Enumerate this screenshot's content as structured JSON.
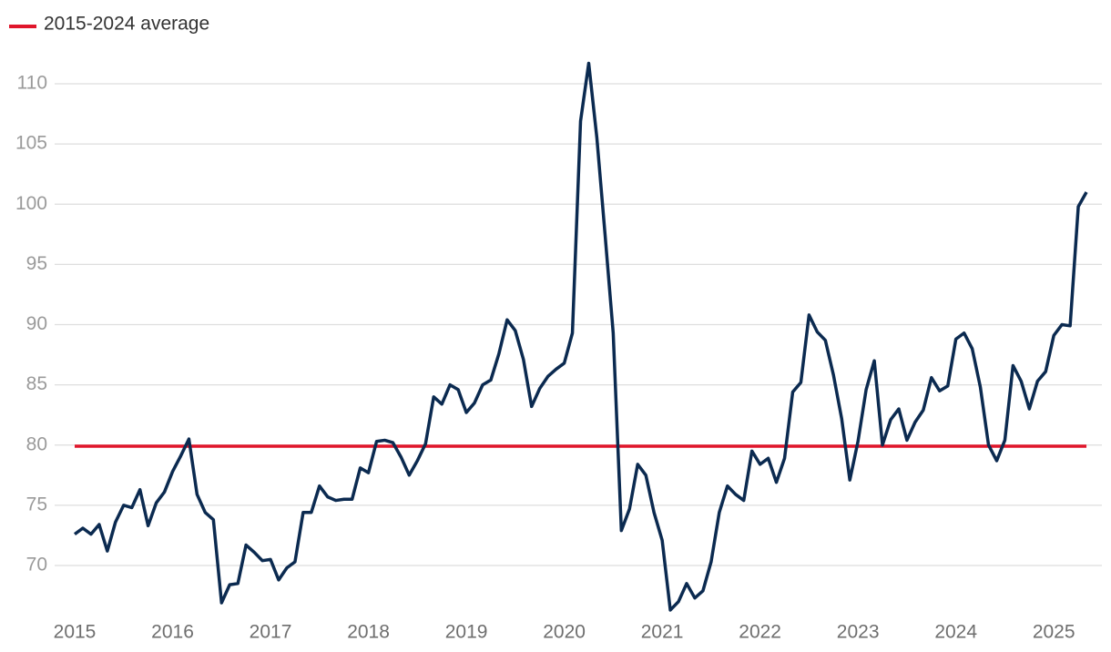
{
  "chart_data": {
    "type": "line",
    "categories": [
      "2015",
      null,
      null,
      null,
      null,
      null,
      null,
      null,
      null,
      null,
      null,
      null,
      "2016",
      null,
      null,
      null,
      null,
      null,
      null,
      null,
      null,
      null,
      null,
      null,
      "2017",
      null,
      null,
      null,
      null,
      null,
      null,
      null,
      null,
      null,
      null,
      null,
      "2018",
      null,
      null,
      null,
      null,
      null,
      null,
      null,
      null,
      null,
      null,
      null,
      "2019",
      null,
      null,
      null,
      null,
      null,
      null,
      null,
      null,
      null,
      null,
      null,
      "2020",
      null,
      null,
      null,
      null,
      null,
      null,
      null,
      null,
      null,
      null,
      null,
      "2021",
      null,
      null,
      null,
      null,
      null,
      null,
      null,
      null,
      null,
      null,
      null,
      "2022",
      null,
      null,
      null,
      null,
      null,
      null,
      null,
      null,
      null,
      null,
      null,
      "2023",
      null,
      null,
      null,
      null,
      null,
      null,
      null,
      null,
      null,
      null,
      null,
      "2024",
      null,
      null,
      null,
      null,
      null,
      null,
      null,
      null,
      null,
      null,
      null,
      "2025",
      null,
      null,
      null,
      null
    ],
    "series": [
      {
        "color": "#0b2a50",
        "values": [
          72.6,
          73.1,
          72.6,
          73.4,
          71.2,
          73.6,
          75.0,
          74.8,
          76.3,
          73.3,
          75.2,
          76.1,
          77.8,
          79.1,
          80.5,
          75.9,
          74.4,
          73.8,
          66.9,
          68.4,
          68.5,
          71.7,
          71.1,
          70.4,
          70.5,
          68.8,
          69.8,
          70.3,
          74.4,
          74.4,
          76.6,
          75.7,
          75.4,
          75.5,
          75.5,
          78.1,
          77.7,
          80.3,
          80.4,
          80.2,
          79.0,
          77.5,
          78.7,
          80.1,
          84.0,
          83.4,
          85.0,
          84.6,
          82.7,
          83.5,
          85.0,
          85.4,
          87.6,
          90.4,
          89.5,
          87.1,
          83.2,
          84.7,
          85.7,
          86.3,
          86.8,
          89.3,
          106.9,
          111.7,
          105.5,
          97.5,
          89.3,
          72.9,
          74.7,
          78.4,
          77.5,
          74.4,
          72.1,
          66.3,
          67.0,
          68.5,
          67.3,
          67.9,
          70.3,
          74.4,
          76.6,
          75.9,
          75.4,
          79.5,
          78.4,
          78.9,
          76.9,
          78.9,
          84.4,
          85.2,
          90.8,
          89.4,
          88.7,
          85.8,
          82.2,
          77.1,
          80.3,
          84.6,
          87.0,
          80.0,
          82.1,
          83.0,
          80.4,
          81.9,
          82.9,
          85.6,
          84.5,
          84.9,
          88.8,
          89.3,
          88.0,
          84.8,
          80.0,
          78.7,
          80.4,
          86.6,
          85.3,
          83.0,
          85.3,
          86.1,
          89.1,
          90.0,
          89.9,
          99.8,
          101.0
        ]
      }
    ],
    "reference_line": {
      "name": "2015-2024 average",
      "value": 79.9,
      "color": "#e0162b"
    },
    "ylim": [
      65.5,
      113
    ],
    "yticks": [
      70,
      75,
      80,
      85,
      90,
      95,
      100,
      105,
      110
    ],
    "grid": true
  }
}
